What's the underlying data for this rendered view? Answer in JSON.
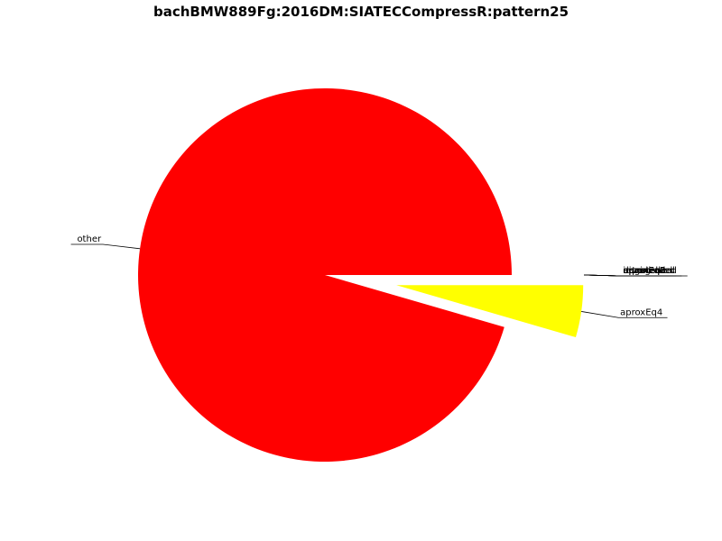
{
  "chart_data": {
    "type": "pie",
    "title": "bachBMW889Fg:2016DM:SIATECCompressR:pattern25",
    "slices": [
      {
        "label": "other",
        "value": 95.5,
        "color": "#ff0000",
        "explode": false
      },
      {
        "label": "aproxEq4",
        "value": 4.5,
        "color": "#ffff00",
        "explode": true
      },
      {
        "label": "aproxEq2",
        "value": 0,
        "color": "#ffff00",
        "explode": true
      },
      {
        "label": "aproxEq3",
        "value": 0,
        "color": "#ffff00",
        "explode": true
      },
      {
        "label": "inverted",
        "value": 0,
        "color": "#ffff00",
        "explode": true
      },
      {
        "label": "augmented",
        "value": 0,
        "color": "#ffff00",
        "explode": true
      },
      {
        "label": "diminished",
        "value": 0,
        "color": "#ffff00",
        "explode": true
      },
      {
        "label": "retrograded",
        "value": 0,
        "color": "#ffff00",
        "explode": true
      },
      {
        "label": "equal",
        "value": 0,
        "color": "#ffff00",
        "explode": true
      }
    ]
  }
}
